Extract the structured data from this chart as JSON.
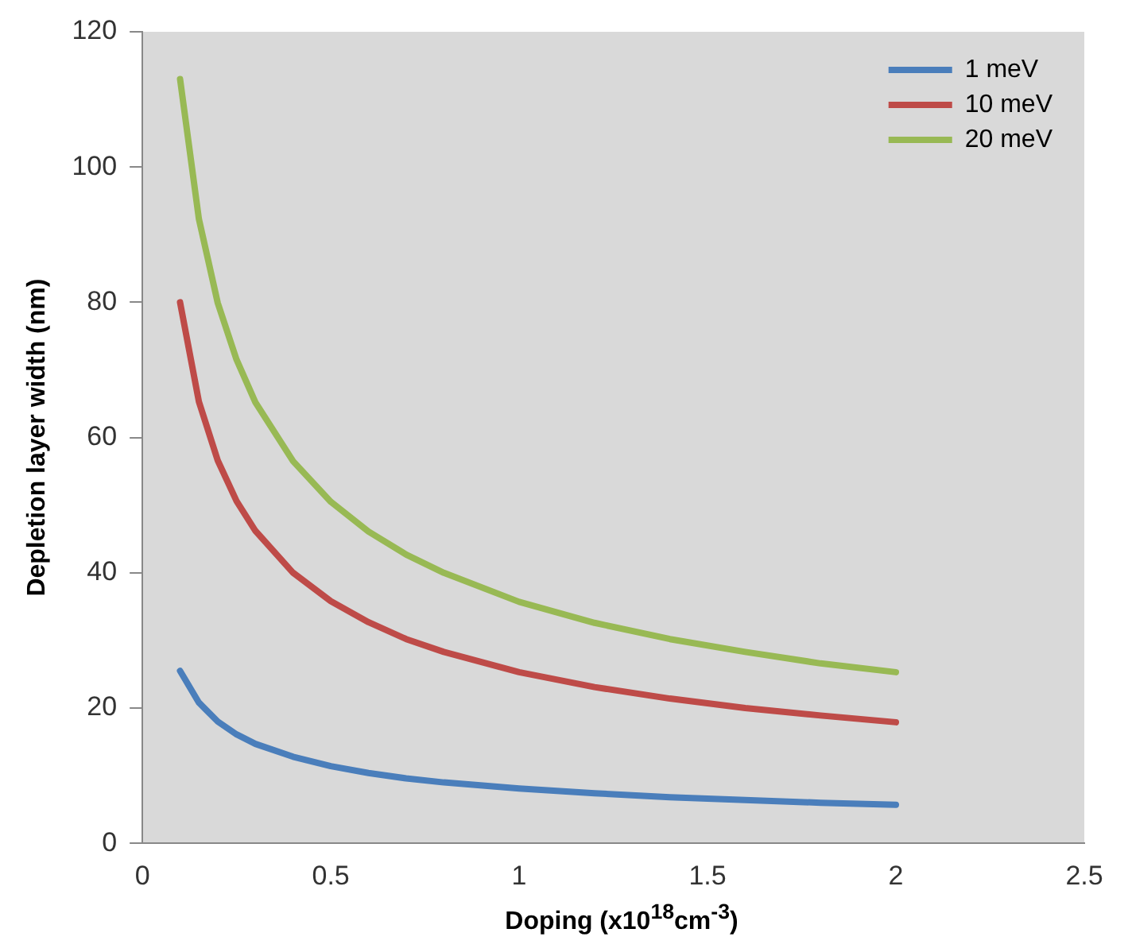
{
  "chart_data": {
    "type": "line",
    "xlabel": "Doping (x10$^{18}$cm$^{-3}$)",
    "ylabel": "Depletion layer width (nm)",
    "x": [
      0.1,
      0.15,
      0.2,
      0.25,
      0.3,
      0.4,
      0.5,
      0.6,
      0.7,
      0.8,
      1.0,
      1.2,
      1.4,
      1.6,
      1.8,
      2.0
    ],
    "series": [
      {
        "name": "1 meV",
        "color": "#4a7ebb",
        "values": [
          25.5,
          20.8,
          18.0,
          16.1,
          14.7,
          12.8,
          11.4,
          10.4,
          9.6,
          9.0,
          8.1,
          7.4,
          6.8,
          6.4,
          6.0,
          5.7
        ]
      },
      {
        "name": "10 meV",
        "color": "#be4b48",
        "values": [
          80,
          65.3,
          56.6,
          50.6,
          46.2,
          40,
          35.8,
          32.7,
          30.2,
          28.3,
          25.3,
          23.1,
          21.4,
          20,
          18.9,
          17.9
        ]
      },
      {
        "name": "20 meV",
        "color": "#98b954",
        "values": [
          113,
          92.3,
          79.9,
          71.5,
          65.2,
          56.5,
          50.5,
          46.1,
          42.7,
          40,
          35.7,
          32.6,
          30.2,
          28.3,
          26.6,
          25.3
        ]
      }
    ],
    "xlim": [
      0,
      2.5
    ],
    "xticks": [
      0,
      0.5,
      1,
      1.5,
      2,
      2.5
    ],
    "ylim": [
      0,
      120
    ],
    "yticks": [
      0,
      20,
      40,
      60,
      80,
      100,
      120
    ],
    "grid": false,
    "legend": "top right",
    "marker": "none",
    "line_style": "solid"
  }
}
